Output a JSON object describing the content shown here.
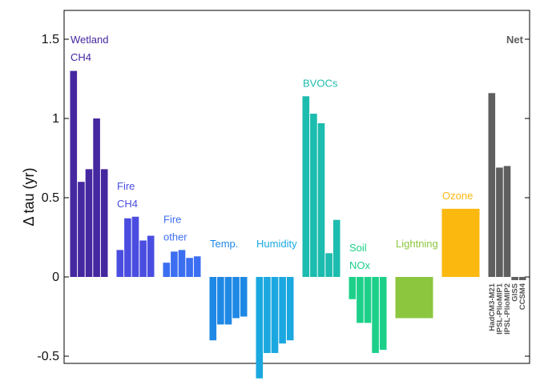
{
  "chart_data": {
    "type": "bar",
    "ylabel": "Δ tau (yr)",
    "ylim": [
      -0.66,
      1.7
    ],
    "yticks": [
      -0.5,
      0,
      0.5,
      1,
      1.5
    ],
    "ytick_labels": [
      "-0.5",
      "0",
      "0.5",
      "1",
      "1.5"
    ],
    "grid": false,
    "groups": [
      {
        "label_lines": [
          "Wetland",
          "CH4"
        ],
        "color": "#4527a0",
        "values": [
          1.3,
          0.6,
          0.68,
          1.0,
          0.68
        ]
      },
      {
        "label_lines": [
          "Fire",
          "CH4"
        ],
        "color": "#4a4de0",
        "values": [
          0.17,
          0.37,
          0.38,
          0.23,
          0.26
        ]
      },
      {
        "label_lines": [
          "Fire",
          "other"
        ],
        "color": "#3c6ef2",
        "values": [
          0.09,
          0.16,
          0.17,
          0.12,
          0.13
        ]
      },
      {
        "label_lines": [
          "Temp."
        ],
        "color": "#1e88e5",
        "values": [
          -0.4,
          -0.3,
          -0.3,
          -0.26,
          -0.25
        ]
      },
      {
        "label_lines": [
          "Humidity"
        ],
        "color": "#1ba8e0",
        "values": [
          -0.64,
          -0.48,
          -0.48,
          -0.42,
          -0.4
        ]
      },
      {
        "label_lines": [
          "BVOCs"
        ],
        "color": "#1cbcae",
        "values": [
          1.14,
          1.03,
          0.97,
          0.15,
          0.36
        ]
      },
      {
        "label_lines": [
          "Soil",
          "NOx"
        ],
        "color": "#1dd08a",
        "values": [
          -0.14,
          -0.29,
          -0.29,
          -0.48,
          -0.46
        ]
      },
      {
        "label_lines": [
          "Lightning"
        ],
        "color": "#8cc63f",
        "values": [
          -0.26
        ]
      },
      {
        "label_lines": [
          "Ozone"
        ],
        "color": "#fbb80f",
        "values": [
          0.43
        ]
      },
      {
        "label_lines": [
          "Net"
        ],
        "color": "#5f5f5f",
        "values": [
          1.16,
          0.69,
          0.7,
          -0.02,
          -0.02
        ]
      }
    ],
    "models": [
      "HadCM3-M21",
      "IPSL-PlioMIP1",
      "IPSL-PlioMIP2",
      "GISS",
      "CCSM4"
    ]
  }
}
